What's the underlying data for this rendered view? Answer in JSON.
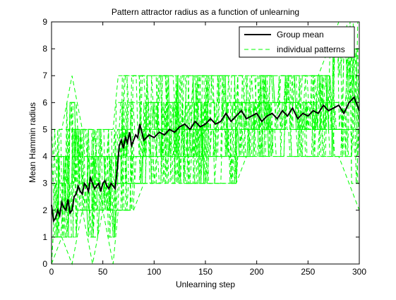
{
  "chart_data": {
    "type": "line",
    "title": "Pattern attractor radius as a function of unlearning",
    "xlabel": "Unlearning step",
    "ylabel": "Mean Hammin radius",
    "xlim": [
      0,
      300
    ],
    "ylim": [
      0,
      9
    ],
    "xticks": [
      0,
      50,
      100,
      150,
      200,
      250,
      300
    ],
    "yticks": [
      0,
      1,
      2,
      3,
      4,
      5,
      6,
      7,
      8,
      9
    ],
    "grid": false,
    "legend": {
      "position": "top-right"
    },
    "series": [
      {
        "name": "Group mean",
        "color": "#000000",
        "style": "solid",
        "x": [
          0,
          2,
          4,
          6,
          8,
          10,
          12,
          14,
          16,
          18,
          20,
          22,
          24,
          26,
          28,
          30,
          32,
          34,
          36,
          38,
          40,
          42,
          44,
          46,
          48,
          50,
          52,
          54,
          56,
          58,
          60,
          62,
          64,
          66,
          68,
          70,
          72,
          74,
          76,
          78,
          80,
          82,
          84,
          86,
          88,
          90,
          95,
          100,
          105,
          110,
          115,
          120,
          125,
          130,
          135,
          140,
          145,
          150,
          155,
          160,
          165,
          170,
          175,
          180,
          185,
          190,
          195,
          200,
          205,
          210,
          215,
          220,
          225,
          230,
          235,
          240,
          245,
          250,
          255,
          260,
          265,
          270,
          275,
          280,
          285,
          290,
          295,
          300
        ],
        "values": [
          2.2,
          1.6,
          1.7,
          2.0,
          1.8,
          2.3,
          2.1,
          2.0,
          2.4,
          1.9,
          2.0,
          2.5,
          2.6,
          2.9,
          2.7,
          2.6,
          3.0,
          2.9,
          2.7,
          3.2,
          3.0,
          2.8,
          2.9,
          3.0,
          2.7,
          3.0,
          3.1,
          2.9,
          2.8,
          3.0,
          2.9,
          2.8,
          3.5,
          4.4,
          4.6,
          4.3,
          4.7,
          4.5,
          4.9,
          4.4,
          4.6,
          4.8,
          4.7,
          5.2,
          4.9,
          4.6,
          4.8,
          4.7,
          4.9,
          4.8,
          5.0,
          4.9,
          5.1,
          5.2,
          5.0,
          5.3,
          5.1,
          5.2,
          5.4,
          5.2,
          5.3,
          5.6,
          5.3,
          5.5,
          5.7,
          5.4,
          5.5,
          5.6,
          5.3,
          5.5,
          5.6,
          5.4,
          5.7,
          5.5,
          5.8,
          5.4,
          5.6,
          5.5,
          5.7,
          5.6,
          5.9,
          5.7,
          5.8,
          5.9,
          5.6,
          6.0,
          6.2,
          5.7
        ]
      },
      {
        "name": "individual patterns",
        "color": "#00ff00",
        "style": "dashed",
        "envelope_x": [
          0,
          10,
          20,
          30,
          40,
          50,
          60,
          65,
          70,
          80,
          90,
          100,
          110,
          120,
          130,
          140,
          150,
          160,
          170,
          180,
          190,
          200,
          210,
          220,
          230,
          240,
          250,
          260,
          270,
          280,
          290,
          300
        ],
        "upper": [
          5,
          5,
          7,
          5,
          5,
          5,
          5,
          7,
          7,
          7,
          7,
          7,
          7,
          7,
          7,
          7,
          7,
          7,
          7,
          7,
          7,
          7,
          7,
          7,
          7,
          7,
          7,
          7,
          8,
          9,
          9,
          9
        ],
        "lower": [
          0,
          1,
          0,
          2,
          0,
          2,
          0,
          2,
          2,
          2,
          3,
          3,
          3,
          3,
          3,
          3,
          3,
          3,
          3,
          3,
          4,
          4,
          4,
          4,
          4,
          4,
          4,
          4,
          4,
          4,
          3,
          2
        ]
      }
    ]
  }
}
